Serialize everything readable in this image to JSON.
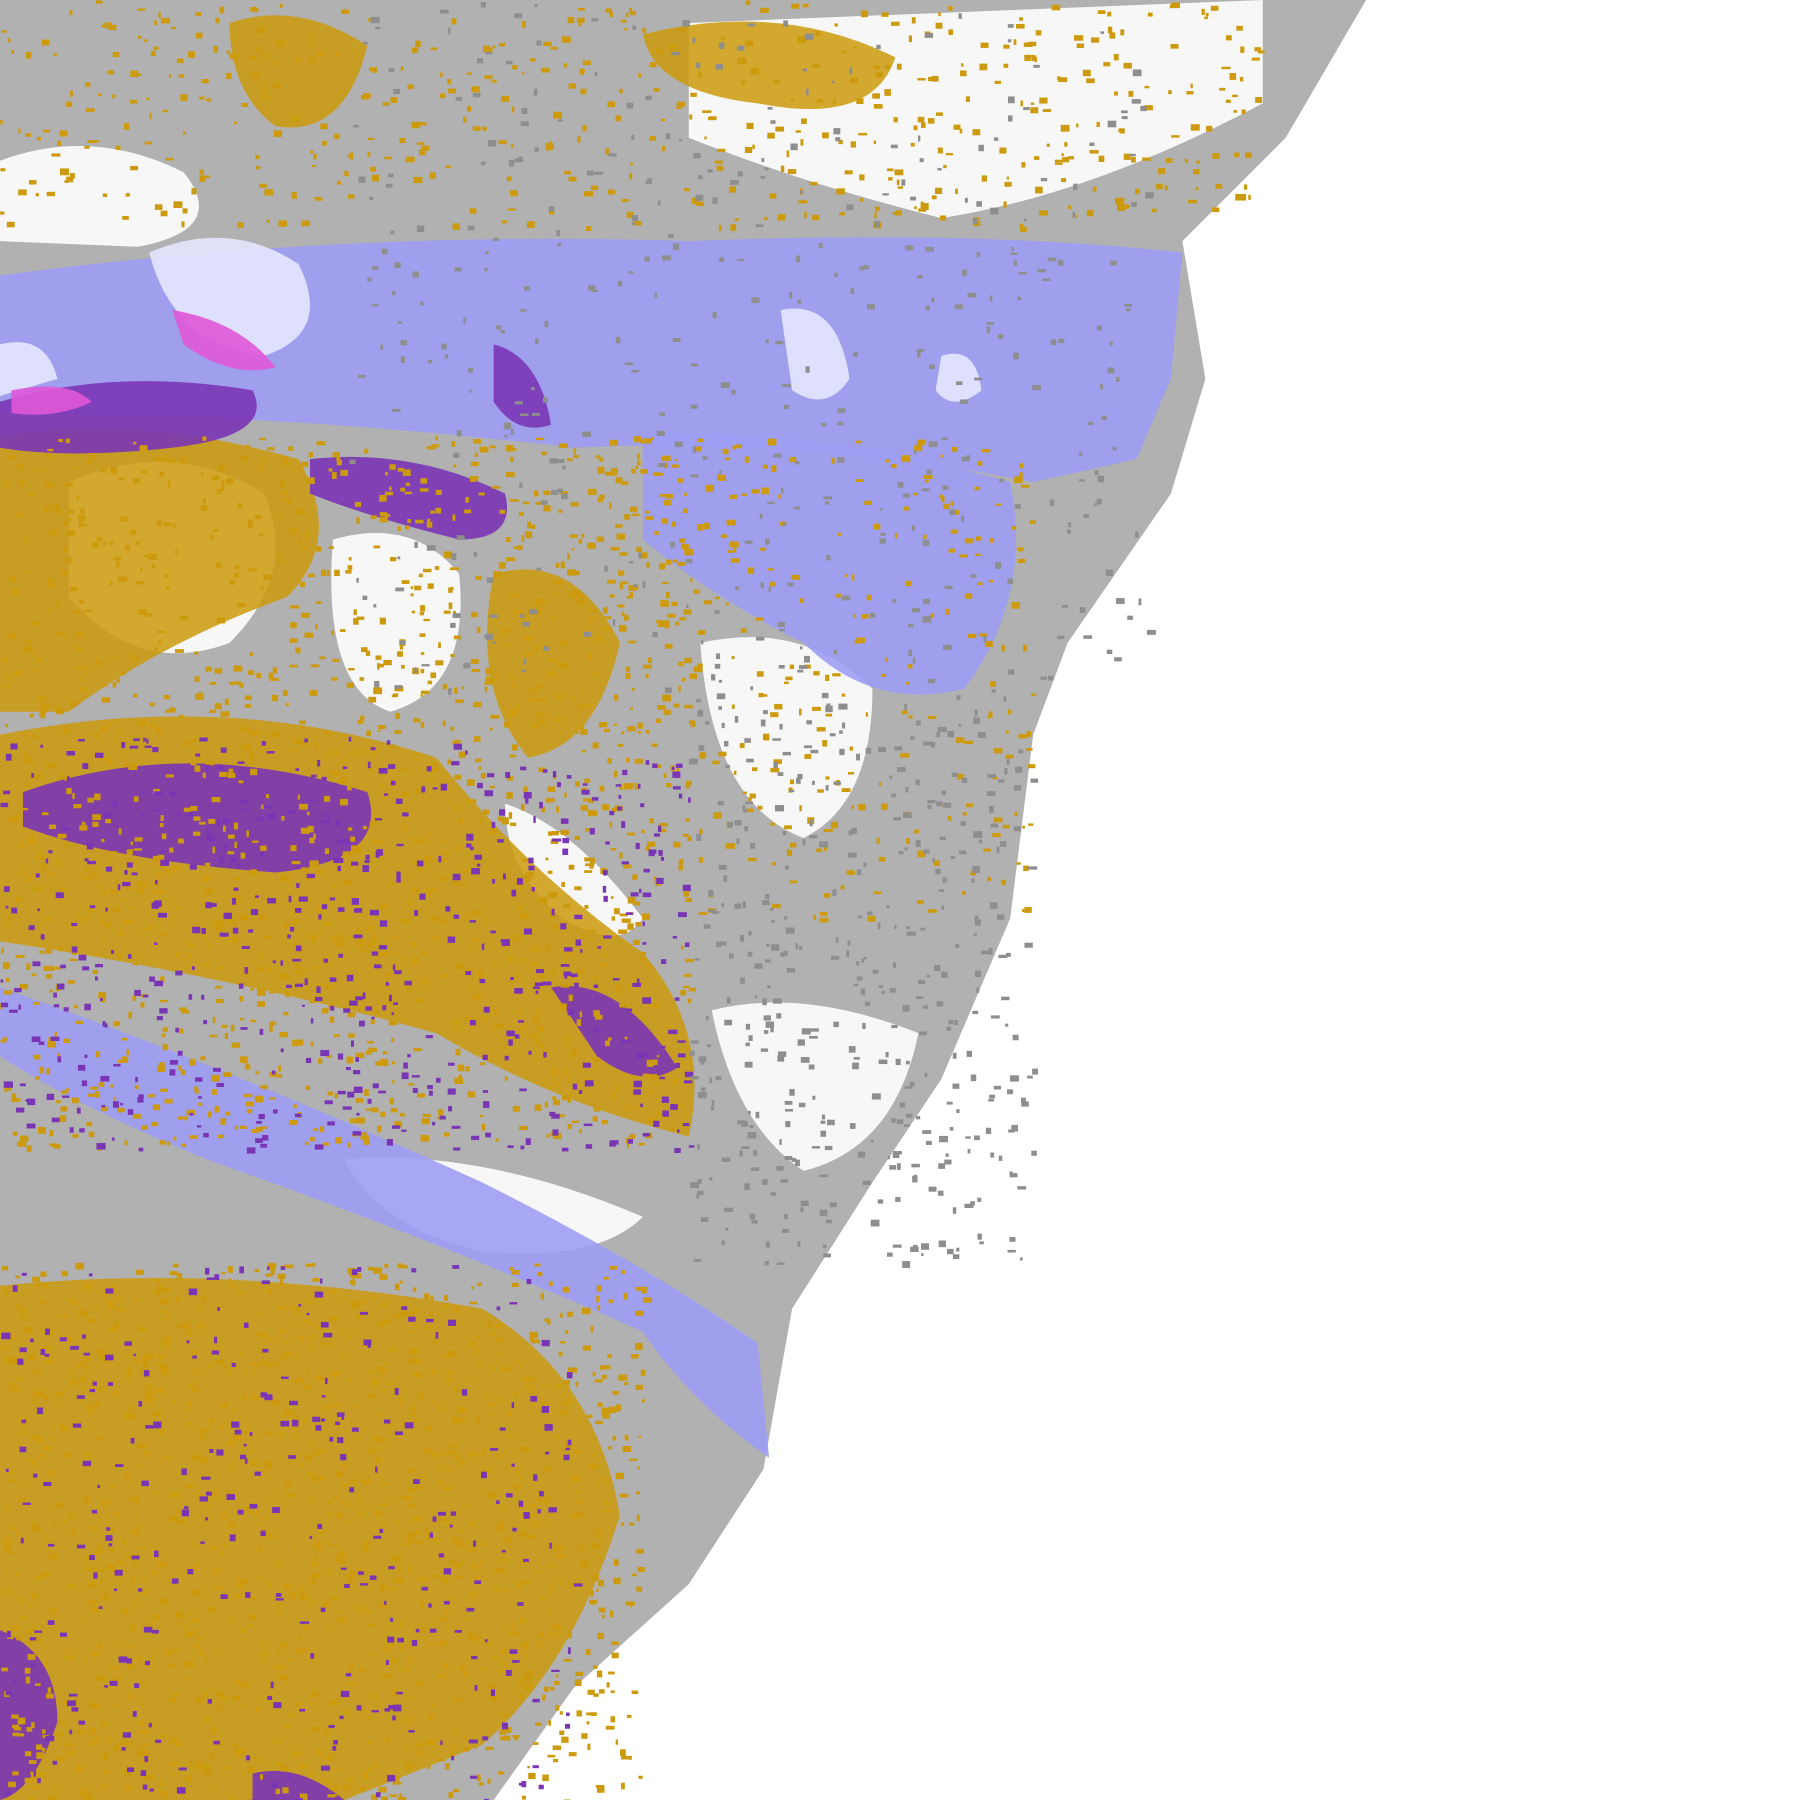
{
  "map": {
    "kind": "classified-raster",
    "background": "#ffffff",
    "colors": {
      "gray": "#a8a8a8",
      "dark_gray": "#8e8e8e",
      "lavender": "#9d9df5",
      "pale_lavender": "#e6e6ff",
      "gold": "#cc9a0c",
      "purple": "#7a35b5",
      "magenta": "#e058d8"
    }
  }
}
